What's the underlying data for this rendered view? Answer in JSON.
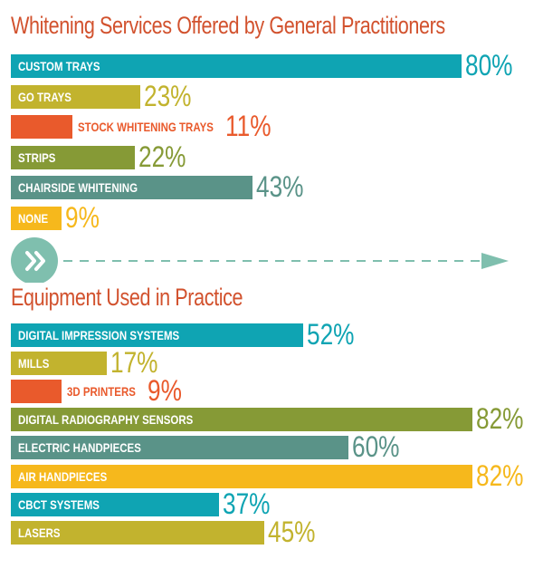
{
  "colors": {
    "title": "#d2522e",
    "teal": "#0fa4b3",
    "olive": "#c2b32e",
    "orange": "#e95a2c",
    "green": "#869a36",
    "slate": "#5a9388",
    "yellow": "#f6b81c",
    "divider": "#7fbfae"
  },
  "divider": {
    "icon": "double-chevron-right-icon",
    "arrow": "dashed-arrow-right"
  },
  "chart_data": [
    {
      "type": "bar",
      "orientation": "horizontal",
      "title": "Whitening Services Offered by General Practitioners",
      "unit": "%",
      "xlim": [
        0,
        100
      ],
      "grid": false,
      "bars": [
        {
          "label": "CUSTOM TRAYS",
          "value": 80,
          "value_label": "80%",
          "color": "teal",
          "label_inside": true
        },
        {
          "label": "GO TRAYS",
          "value": 23,
          "value_label": "23%",
          "color": "olive",
          "label_inside": true
        },
        {
          "label": "STOCK WHITENING TRAYS",
          "value": 11,
          "value_label": "11%",
          "color": "orange",
          "label_inside": false
        },
        {
          "label": "STRIPS",
          "value": 22,
          "value_label": "22%",
          "color": "green",
          "label_inside": true
        },
        {
          "label": "CHAIRSIDE WHITENING",
          "value": 43,
          "value_label": "43%",
          "color": "slate",
          "label_inside": true
        },
        {
          "label": "NONE",
          "value": 9,
          "value_label": "9%",
          "color": "yellow",
          "label_inside": true
        }
      ]
    },
    {
      "type": "bar",
      "orientation": "horizontal",
      "title": "Equipment Used in Practice",
      "unit": "%",
      "xlim": [
        0,
        100
      ],
      "grid": false,
      "bars": [
        {
          "label": "DIGITAL IMPRESSION SYSTEMS",
          "value": 52,
          "value_label": "52%",
          "color": "teal",
          "label_inside": true
        },
        {
          "label": "MILLS",
          "value": 17,
          "value_label": "17%",
          "color": "olive",
          "label_inside": true
        },
        {
          "label": "3D PRINTERS",
          "value": 9,
          "value_label": "9%",
          "color": "orange",
          "label_inside": false
        },
        {
          "label": "DIGITAL RADIOGRAPHY SENSORS",
          "value": 82,
          "value_label": "82%",
          "color": "green",
          "label_inside": true
        },
        {
          "label": "ELECTRIC HANDPIECES",
          "value": 60,
          "value_label": "60%",
          "color": "slate",
          "label_inside": true
        },
        {
          "label": "AIR HANDPIECES",
          "value": 82,
          "value_label": "82%",
          "color": "yellow",
          "label_inside": true
        },
        {
          "label": "CBCT SYSTEMS",
          "value": 37,
          "value_label": "37%",
          "color": "teal",
          "label_inside": true
        },
        {
          "label": "LASERS",
          "value": 45,
          "value_label": "45%",
          "color": "olive",
          "label_inside": true
        }
      ]
    }
  ]
}
